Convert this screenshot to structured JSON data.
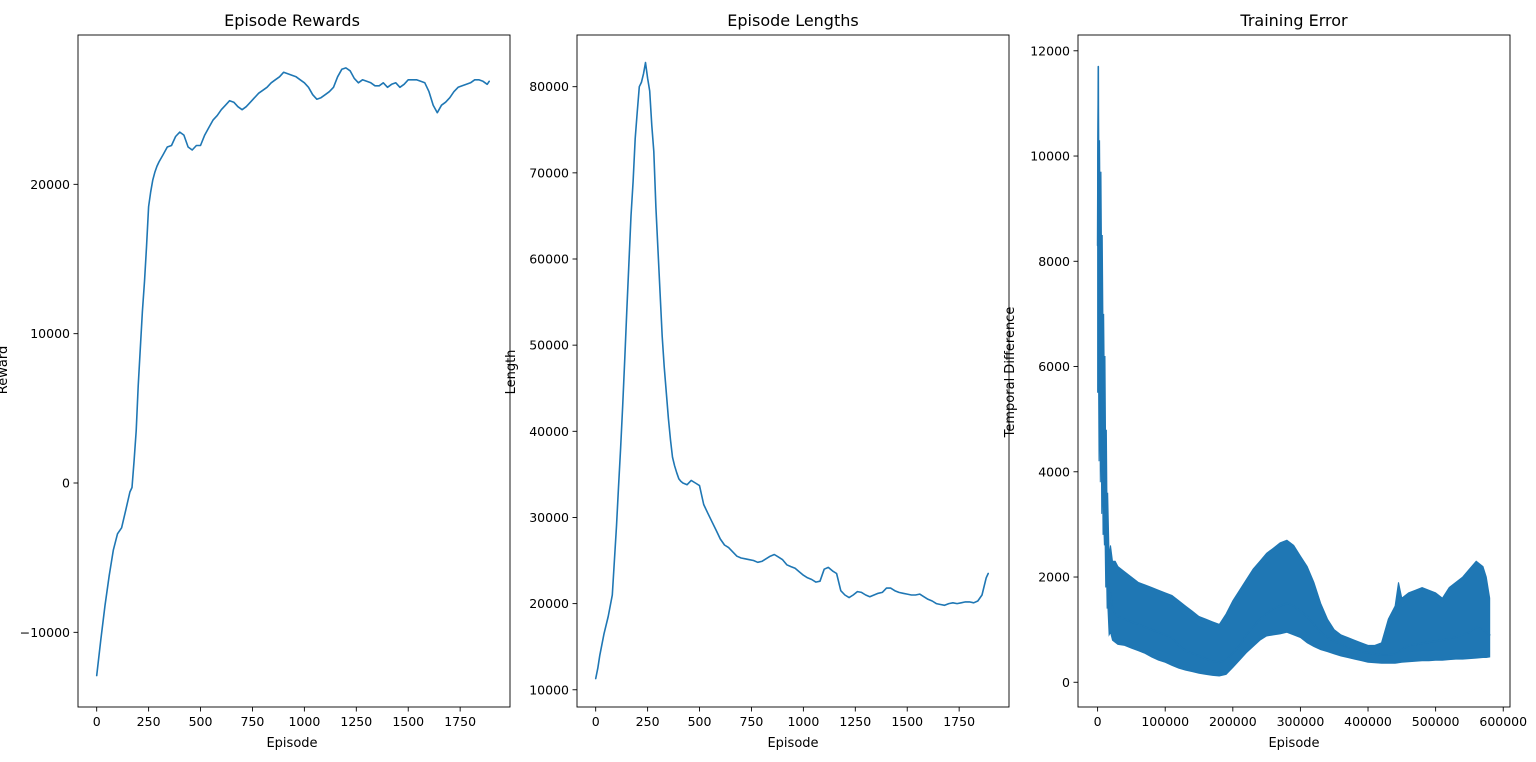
{
  "chart_data": [
    {
      "type": "line",
      "title": "Episode Rewards",
      "xlabel": "Episode",
      "ylabel": "Reward",
      "xlim": [
        -90,
        1990
      ],
      "ylim": [
        -15000,
        30000
      ],
      "xticks": [
        0,
        250,
        500,
        750,
        1000,
        1250,
        1500,
        1750
      ],
      "yticks": [
        -10000,
        0,
        10000,
        20000
      ],
      "grid": false,
      "color": "#1f77b4",
      "series": [
        {
          "x": [
            0,
            20,
            40,
            60,
            80,
            100,
            120,
            140,
            160,
            170,
            180,
            190,
            200,
            210,
            220,
            230,
            240,
            250,
            260,
            270,
            280,
            290,
            300,
            320,
            340,
            360,
            380,
            400,
            420,
            440,
            460,
            480,
            500,
            520,
            540,
            560,
            580,
            600,
            620,
            640,
            660,
            680,
            700,
            720,
            740,
            760,
            780,
            800,
            820,
            840,
            860,
            880,
            900,
            920,
            940,
            960,
            980,
            1000,
            1020,
            1040,
            1060,
            1080,
            1100,
            1120,
            1140,
            1160,
            1180,
            1200,
            1220,
            1240,
            1260,
            1280,
            1300,
            1320,
            1340,
            1360,
            1380,
            1400,
            1420,
            1440,
            1460,
            1480,
            1500,
            1520,
            1540,
            1560,
            1580,
            1600,
            1620,
            1640,
            1660,
            1680,
            1700,
            1720,
            1740,
            1760,
            1780,
            1800,
            1820,
            1840,
            1860,
            1880,
            1890
          ],
          "y": [
            -12900,
            -10500,
            -8200,
            -6200,
            -4500,
            -3400,
            -3000,
            -1800,
            -600,
            -300,
            1500,
            3500,
            6500,
            9000,
            11500,
            13500,
            15800,
            18500,
            19500,
            20300,
            20800,
            21200,
            21500,
            22000,
            22500,
            22600,
            23200,
            23500,
            23300,
            22500,
            22300,
            22600,
            22600,
            23300,
            23800,
            24300,
            24600,
            25000,
            25300,
            25600,
            25500,
            25200,
            25000,
            25200,
            25500,
            25800,
            26100,
            26300,
            26500,
            26800,
            27000,
            27200,
            27500,
            27400,
            27300,
            27200,
            27000,
            26800,
            26500,
            26000,
            25700,
            25800,
            26000,
            26200,
            26500,
            27200,
            27700,
            27800,
            27600,
            27100,
            26800,
            27000,
            26900,
            26800,
            26600,
            26600,
            26800,
            26500,
            26700,
            26800,
            26500,
            26700,
            27000,
            27000,
            27000,
            26900,
            26800,
            26200,
            25300,
            24800,
            25300,
            25500,
            25800,
            26200,
            26500,
            26600,
            26700,
            26800,
            27000,
            27000,
            26900,
            26700,
            26900
          ]
        }
      ]
    },
    {
      "type": "line",
      "title": "Episode Lengths",
      "xlabel": "Episode",
      "ylabel": "Length",
      "xlim": [
        -90,
        1990
      ],
      "ylim": [
        8000,
        86000
      ],
      "xticks": [
        0,
        250,
        500,
        750,
        1000,
        1250,
        1500,
        1750
      ],
      "yticks": [
        10000,
        20000,
        30000,
        40000,
        50000,
        60000,
        70000,
        80000
      ],
      "grid": false,
      "color": "#1f77b4",
      "series": [
        {
          "x": [
            0,
            10,
            20,
            40,
            60,
            80,
            90,
            100,
            110,
            120,
            130,
            140,
            150,
            160,
            170,
            180,
            190,
            200,
            210,
            220,
            230,
            240,
            250,
            260,
            270,
            280,
            290,
            300,
            310,
            320,
            330,
            340,
            350,
            360,
            370,
            380,
            390,
            400,
            410,
            420,
            440,
            460,
            480,
            500,
            520,
            540,
            560,
            580,
            600,
            620,
            640,
            660,
            680,
            700,
            720,
            740,
            760,
            780,
            800,
            820,
            840,
            860,
            880,
            900,
            920,
            940,
            960,
            980,
            1000,
            1020,
            1040,
            1060,
            1080,
            1100,
            1120,
            1140,
            1160,
            1180,
            1200,
            1220,
            1240,
            1260,
            1280,
            1300,
            1320,
            1340,
            1360,
            1380,
            1400,
            1420,
            1440,
            1460,
            1480,
            1500,
            1520,
            1540,
            1560,
            1580,
            1600,
            1620,
            1640,
            1660,
            1680,
            1700,
            1720,
            1740,
            1760,
            1780,
            1800,
            1820,
            1840,
            1860,
            1880,
            1890
          ],
          "y": [
            11300,
            12500,
            14000,
            16500,
            18500,
            21000,
            25000,
            29000,
            33500,
            38000,
            43000,
            48500,
            54000,
            59500,
            65000,
            69000,
            74000,
            77000,
            80000,
            80500,
            81500,
            82800,
            81000,
            79500,
            75500,
            72500,
            66000,
            61000,
            56000,
            51000,
            47500,
            44500,
            41500,
            39000,
            37000,
            36000,
            35200,
            34500,
            34200,
            34000,
            33800,
            34300,
            34000,
            33700,
            31500,
            30500,
            29500,
            28500,
            27500,
            26800,
            26500,
            26000,
            25500,
            25300,
            25200,
            25100,
            25000,
            24800,
            24900,
            25200,
            25500,
            25700,
            25400,
            25100,
            24500,
            24300,
            24100,
            23700,
            23300,
            23000,
            22800,
            22500,
            22600,
            24000,
            24200,
            23800,
            23500,
            21500,
            21000,
            20700,
            21000,
            21400,
            21300,
            21000,
            20800,
            21000,
            21200,
            21300,
            21800,
            21800,
            21500,
            21300,
            21200,
            21100,
            21000,
            21000,
            21100,
            20800,
            20500,
            20300,
            20000,
            19900,
            19800,
            20000,
            20100,
            20000,
            20100,
            20200,
            20200,
            20100,
            20300,
            21000,
            23000,
            23500
          ]
        }
      ]
    },
    {
      "type": "line",
      "title": "Training Error",
      "xlabel": "Episode",
      "ylabel": "Temporal Difference",
      "xlim": [
        -29000,
        610000
      ],
      "ylim": [
        -470,
        12300
      ],
      "xticks": [
        0,
        100000,
        200000,
        300000,
        400000,
        500000,
        600000
      ],
      "yticks": [
        0,
        2000,
        4000,
        6000,
        8000,
        10000,
        12000
      ],
      "grid": false,
      "color": "#1f77b4",
      "series": [
        {
          "x": [
            0,
            1000,
            2000,
            3000,
            4000,
            5000,
            6000,
            7000,
            8000,
            9000,
            10000,
            11000,
            12000,
            13000,
            14000,
            15000,
            17000,
            19000,
            22000,
            26000,
            30000,
            40000,
            50000,
            60000,
            70000,
            80000,
            90000,
            100000,
            110000,
            120000,
            130000,
            140000,
            150000,
            160000,
            170000,
            180000,
            190000,
            200000,
            210000,
            220000,
            230000,
            240000,
            250000,
            260000,
            270000,
            280000,
            290000,
            300000,
            310000,
            320000,
            330000,
            340000,
            350000,
            360000,
            370000,
            380000,
            390000,
            400000,
            410000,
            420000,
            430000,
            440000,
            445000,
            450000,
            460000,
            470000,
            480000,
            490000,
            500000,
            510000,
            520000,
            530000,
            540000,
            550000,
            560000,
            570000,
            575000,
            580000
          ],
          "y": [
            8300,
            11700,
            6000,
            9700,
            5500,
            8500,
            4800,
            7000,
            4000,
            4500,
            3900,
            4100,
            2800,
            3600,
            2200,
            2600,
            1600,
            1700,
            1400,
            1300,
            1250,
            1200,
            1150,
            1100,
            1050,
            1000,
            950,
            900,
            850,
            700,
            600,
            550,
            500,
            450,
            400,
            380,
            420,
            550,
            700,
            900,
            1050,
            1200,
            1300,
            1400,
            1450,
            1500,
            1450,
            1350,
            1250,
            1100,
            950,
            850,
            780,
            720,
            660,
            620,
            580,
            560,
            540,
            520,
            520,
            540,
            560,
            620,
            700,
            720,
            740,
            760,
            780,
            800,
            830,
            860,
            900,
            950,
            1050,
            1000,
            950,
            900
          ],
          "y_band_low": [
            5500,
            6500,
            4200,
            5800,
            3800,
            5200,
            3200,
            4500,
            2800,
            3000,
            2600,
            2800,
            1800,
            2200,
            1400,
            1500,
            900,
            950,
            800,
            760,
            720,
            700,
            650,
            600,
            550,
            480,
            420,
            380,
            320,
            270,
            230,
            200,
            170,
            150,
            130,
            120,
            150,
            280,
            420,
            560,
            680,
            800,
            880,
            900,
            920,
            950,
            900,
            850,
            750,
            680,
            620,
            580,
            540,
            500,
            470,
            440,
            410,
            380,
            370,
            360,
            360,
            360,
            370,
            380,
            390,
            400,
            410,
            410,
            420,
            420,
            430,
            440,
            440,
            450,
            460,
            470,
            470,
            480
          ],
          "y_band_high": [
            10000,
            11700,
            9000,
            10300,
            8500,
            9700,
            7800,
            8500,
            6800,
            7000,
            5600,
            6200,
            4300,
            4800,
            3200,
            3600,
            2400,
            2600,
            2300,
            2300,
            2200,
            2100,
            2000,
            1900,
            1850,
            1800,
            1750,
            1700,
            1650,
            1550,
            1450,
            1350,
            1250,
            1200,
            1150,
            1100,
            1300,
            1550,
            1750,
            1950,
            2150,
            2300,
            2450,
            2550,
            2650,
            2700,
            2600,
            2400,
            2200,
            1900,
            1500,
            1200,
            1000,
            900,
            850,
            800,
            750,
            700,
            700,
            750,
            1200,
            1450,
            1900,
            1600,
            1700,
            1750,
            1800,
            1750,
            1700,
            1600,
            1800,
            1900,
            2000,
            2150,
            2300,
            2200,
            2000,
            1600
          ]
        }
      ]
    }
  ]
}
